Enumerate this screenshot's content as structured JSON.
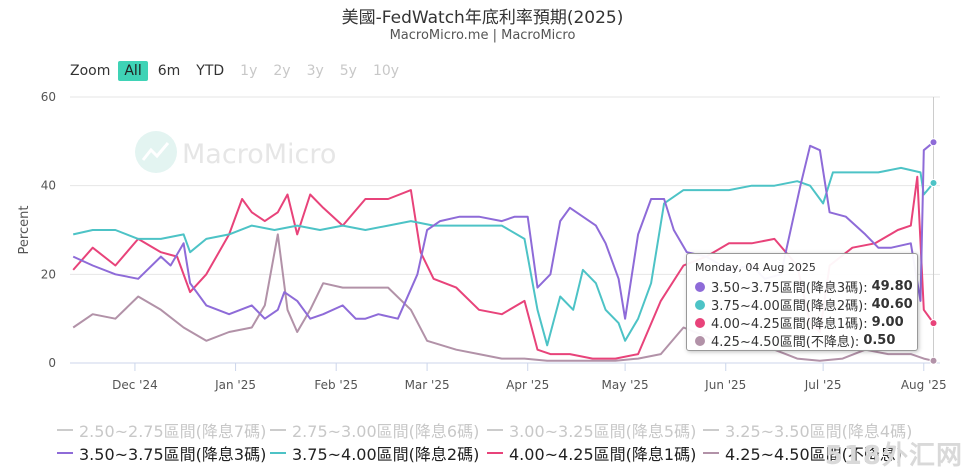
{
  "header": {
    "title": "美國-FedWatch年底利率預期(2025)",
    "subtitle": "MacroMicro.me | MacroMicro"
  },
  "range_selector": {
    "zoom_label": "Zoom",
    "buttons": [
      {
        "label": "All",
        "state": "active"
      },
      {
        "label": "6m",
        "state": "enabled"
      },
      {
        "label": "YTD",
        "state": "enabled"
      },
      {
        "label": "1y",
        "state": "disabled"
      },
      {
        "label": "2y",
        "state": "disabled"
      },
      {
        "label": "3y",
        "state": "disabled"
      },
      {
        "label": "5y",
        "state": "disabled"
      },
      {
        "label": "10y",
        "state": "disabled"
      }
    ]
  },
  "watermark": {
    "text": "MacroMicro"
  },
  "corner_mark": {
    "text": "518外汇网"
  },
  "tooltip": {
    "header": "Monday, 04 Aug 2025",
    "rows": [
      {
        "label": "3.50~3.75區間(降息3碼):",
        "value": "49.80",
        "color": "#8e6bd8"
      },
      {
        "label": "3.75~4.00區間(降息2碼):",
        "value": "40.60",
        "color": "#4dc3c6"
      },
      {
        "label": "4.00~4.25區間(降息1碼):",
        "value": "9.00",
        "color": "#e8437a"
      },
      {
        "label": "4.25~4.50區間(不降息):",
        "value": "0.50",
        "color": "#b292a8"
      }
    ]
  },
  "chart_data": {
    "type": "line",
    "title": "美國-FedWatch年底利率預期(2025)",
    "ylabel": "Percent",
    "ylim": [
      0,
      60
    ],
    "yticks": [
      0,
      20,
      40,
      60
    ],
    "xlim": [
      "2024-11-11",
      "2025-08-06"
    ],
    "xticks": [
      {
        "date": "2024-12-01",
        "label": "Dec '24"
      },
      {
        "date": "2025-01-01",
        "label": "Jan '25"
      },
      {
        "date": "2025-02-01",
        "label": "Feb '25"
      },
      {
        "date": "2025-03-01",
        "label": "Mar '25"
      },
      {
        "date": "2025-04-01",
        "label": "Apr '25"
      },
      {
        "date": "2025-05-01",
        "label": "May '25"
      },
      {
        "date": "2025-06-01",
        "label": "Jun '25"
      },
      {
        "date": "2025-07-01",
        "label": "Jul '25"
      },
      {
        "date": "2025-08-01",
        "label": "Aug '25"
      }
    ],
    "grid": true,
    "legend_position": "bottom",
    "hover_date": "2025-08-04",
    "hidden_series": [
      {
        "name": "2.50~2.75區間(降息7碼)"
      },
      {
        "name": "2.75~3.00區間(降息6碼)"
      },
      {
        "name": "3.00~3.25區間(降息5碼)"
      },
      {
        "name": "3.25~3.50區間(降息4碼)"
      }
    ],
    "series": [
      {
        "name": "3.50~3.75區間(降息3碼)",
        "color": "#8e6bd8",
        "points": [
          [
            "2024-11-12",
            24
          ],
          [
            "2024-11-18",
            22
          ],
          [
            "2024-11-25",
            20
          ],
          [
            "2024-12-02",
            19
          ],
          [
            "2024-12-09",
            24
          ],
          [
            "2024-12-12",
            22
          ],
          [
            "2024-12-16",
            27
          ],
          [
            "2024-12-18",
            18
          ],
          [
            "2024-12-23",
            13
          ],
          [
            "2024-12-30",
            11
          ],
          [
            "2025-01-06",
            13
          ],
          [
            "2025-01-10",
            10
          ],
          [
            "2025-01-14",
            12
          ],
          [
            "2025-01-16",
            16
          ],
          [
            "2025-01-20",
            14
          ],
          [
            "2025-01-24",
            10
          ],
          [
            "2025-01-28",
            11
          ],
          [
            "2025-02-03",
            13
          ],
          [
            "2025-02-07",
            10
          ],
          [
            "2025-02-10",
            10
          ],
          [
            "2025-02-14",
            11
          ],
          [
            "2025-02-20",
            10
          ],
          [
            "2025-02-26",
            20
          ],
          [
            "2025-03-01",
            30
          ],
          [
            "2025-03-05",
            32
          ],
          [
            "2025-03-11",
            33
          ],
          [
            "2025-03-17",
            33
          ],
          [
            "2025-03-24",
            32
          ],
          [
            "2025-03-28",
            33
          ],
          [
            "2025-04-01",
            33
          ],
          [
            "2025-04-04",
            17
          ],
          [
            "2025-04-08",
            20
          ],
          [
            "2025-04-11",
            32
          ],
          [
            "2025-04-14",
            35
          ],
          [
            "2025-04-18",
            33
          ],
          [
            "2025-04-22",
            31
          ],
          [
            "2025-04-25",
            27
          ],
          [
            "2025-04-29",
            19
          ],
          [
            "2025-05-01",
            10
          ],
          [
            "2025-05-05",
            29
          ],
          [
            "2025-05-09",
            37
          ],
          [
            "2025-05-13",
            37
          ],
          [
            "2025-05-16",
            30
          ],
          [
            "2025-05-20",
            25
          ],
          [
            "2025-05-26",
            24
          ],
          [
            "2025-06-02",
            21
          ],
          [
            "2025-06-09",
            22
          ],
          [
            "2025-06-13",
            19
          ],
          [
            "2025-06-18",
            20
          ],
          [
            "2025-06-24",
            40
          ],
          [
            "2025-06-27",
            49
          ],
          [
            "2025-06-30",
            48
          ],
          [
            "2025-07-03",
            34
          ],
          [
            "2025-07-08",
            33
          ],
          [
            "2025-07-14",
            29
          ],
          [
            "2025-07-18",
            26
          ],
          [
            "2025-07-22",
            26
          ],
          [
            "2025-07-28",
            27
          ],
          [
            "2025-07-31",
            14
          ],
          [
            "2025-08-01",
            48
          ],
          [
            "2025-08-04",
            49.8
          ]
        ]
      },
      {
        "name": "3.75~4.00區間(降息2碼)",
        "color": "#4dc3c6",
        "points": [
          [
            "2024-11-12",
            29
          ],
          [
            "2024-11-18",
            30
          ],
          [
            "2024-11-25",
            30
          ],
          [
            "2024-12-02",
            28
          ],
          [
            "2024-12-09",
            28
          ],
          [
            "2024-12-16",
            29
          ],
          [
            "2024-12-18",
            25
          ],
          [
            "2024-12-23",
            28
          ],
          [
            "2024-12-30",
            29
          ],
          [
            "2025-01-06",
            31
          ],
          [
            "2025-01-13",
            30
          ],
          [
            "2025-01-20",
            31
          ],
          [
            "2025-01-27",
            30
          ],
          [
            "2025-02-03",
            31
          ],
          [
            "2025-02-10",
            30
          ],
          [
            "2025-02-17",
            31
          ],
          [
            "2025-02-24",
            32
          ],
          [
            "2025-03-03",
            31
          ],
          [
            "2025-03-10",
            31
          ],
          [
            "2025-03-17",
            31
          ],
          [
            "2025-03-24",
            31
          ],
          [
            "2025-03-31",
            28
          ],
          [
            "2025-04-04",
            12
          ],
          [
            "2025-04-07",
            4
          ],
          [
            "2025-04-11",
            15
          ],
          [
            "2025-04-15",
            12
          ],
          [
            "2025-04-18",
            21
          ],
          [
            "2025-04-22",
            18
          ],
          [
            "2025-04-25",
            12
          ],
          [
            "2025-04-29",
            9
          ],
          [
            "2025-05-01",
            5
          ],
          [
            "2025-05-05",
            10
          ],
          [
            "2025-05-09",
            18
          ],
          [
            "2025-05-13",
            36
          ],
          [
            "2025-05-19",
            39
          ],
          [
            "2025-05-26",
            39
          ],
          [
            "2025-06-02",
            39
          ],
          [
            "2025-06-09",
            40
          ],
          [
            "2025-06-16",
            40
          ],
          [
            "2025-06-23",
            41
          ],
          [
            "2025-06-27",
            40
          ],
          [
            "2025-07-01",
            36
          ],
          [
            "2025-07-04",
            43
          ],
          [
            "2025-07-11",
            43
          ],
          [
            "2025-07-18",
            43
          ],
          [
            "2025-07-25",
            44
          ],
          [
            "2025-07-31",
            43
          ],
          [
            "2025-08-01",
            38
          ],
          [
            "2025-08-04",
            40.6
          ]
        ]
      },
      {
        "name": "4.00~4.25區間(降息1碼)",
        "color": "#e8437a",
        "points": [
          [
            "2024-11-12",
            21
          ],
          [
            "2024-11-18",
            26
          ],
          [
            "2024-11-25",
            22
          ],
          [
            "2024-12-02",
            28
          ],
          [
            "2024-12-09",
            25
          ],
          [
            "2024-12-14",
            24
          ],
          [
            "2024-12-18",
            16
          ],
          [
            "2024-12-23",
            20
          ],
          [
            "2024-12-30",
            29
          ],
          [
            "2025-01-03",
            37
          ],
          [
            "2025-01-06",
            34
          ],
          [
            "2025-01-10",
            32
          ],
          [
            "2025-01-14",
            34
          ],
          [
            "2025-01-17",
            38
          ],
          [
            "2025-01-20",
            29
          ],
          [
            "2025-01-24",
            38
          ],
          [
            "2025-01-28",
            35
          ],
          [
            "2025-02-03",
            31
          ],
          [
            "2025-02-10",
            37
          ],
          [
            "2025-02-17",
            37
          ],
          [
            "2025-02-24",
            39
          ],
          [
            "2025-02-27",
            25
          ],
          [
            "2025-03-03",
            19
          ],
          [
            "2025-03-10",
            17
          ],
          [
            "2025-03-17",
            12
          ],
          [
            "2025-03-24",
            11
          ],
          [
            "2025-03-31",
            14
          ],
          [
            "2025-04-04",
            3
          ],
          [
            "2025-04-08",
            2
          ],
          [
            "2025-04-14",
            2
          ],
          [
            "2025-04-21",
            1
          ],
          [
            "2025-04-28",
            1
          ],
          [
            "2025-05-05",
            2
          ],
          [
            "2025-05-12",
            14
          ],
          [
            "2025-05-19",
            22
          ],
          [
            "2025-05-26",
            24
          ],
          [
            "2025-06-02",
            27
          ],
          [
            "2025-06-09",
            27
          ],
          [
            "2025-06-16",
            28
          ],
          [
            "2025-06-23",
            22
          ],
          [
            "2025-06-27",
            9
          ],
          [
            "2025-06-30",
            7
          ],
          [
            "2025-07-03",
            22
          ],
          [
            "2025-07-10",
            26
          ],
          [
            "2025-07-17",
            27
          ],
          [
            "2025-07-24",
            30
          ],
          [
            "2025-07-28",
            31
          ],
          [
            "2025-07-30",
            42
          ],
          [
            "2025-08-01",
            12
          ],
          [
            "2025-08-04",
            9.0
          ]
        ]
      },
      {
        "name": "4.25~4.50區間(不降息)",
        "color": "#b292a8",
        "points": [
          [
            "2024-11-12",
            8
          ],
          [
            "2024-11-18",
            11
          ],
          [
            "2024-11-25",
            10
          ],
          [
            "2024-12-02",
            15
          ],
          [
            "2024-12-09",
            12
          ],
          [
            "2024-12-16",
            8
          ],
          [
            "2024-12-23",
            5
          ],
          [
            "2024-12-30",
            7
          ],
          [
            "2025-01-06",
            8
          ],
          [
            "2025-01-10",
            13
          ],
          [
            "2025-01-14",
            29
          ],
          [
            "2025-01-17",
            12
          ],
          [
            "2025-01-20",
            7
          ],
          [
            "2025-01-24",
            12
          ],
          [
            "2025-01-28",
            18
          ],
          [
            "2025-02-03",
            17
          ],
          [
            "2025-02-10",
            17
          ],
          [
            "2025-02-17",
            17
          ],
          [
            "2025-02-24",
            12
          ],
          [
            "2025-03-01",
            5
          ],
          [
            "2025-03-10",
            3
          ],
          [
            "2025-03-17",
            2
          ],
          [
            "2025-03-24",
            1
          ],
          [
            "2025-03-31",
            1
          ],
          [
            "2025-04-07",
            0.5
          ],
          [
            "2025-04-14",
            0.5
          ],
          [
            "2025-04-21",
            0.5
          ],
          [
            "2025-04-28",
            0.5
          ],
          [
            "2025-05-05",
            1
          ],
          [
            "2025-05-12",
            2
          ],
          [
            "2025-05-19",
            8
          ],
          [
            "2025-05-26",
            6
          ],
          [
            "2025-06-02",
            3
          ],
          [
            "2025-06-09",
            3
          ],
          [
            "2025-06-16",
            3
          ],
          [
            "2025-06-23",
            1
          ],
          [
            "2025-06-30",
            0.5
          ],
          [
            "2025-07-07",
            1
          ],
          [
            "2025-07-14",
            3
          ],
          [
            "2025-07-21",
            2
          ],
          [
            "2025-07-28",
            2
          ],
          [
            "2025-08-01",
            1
          ],
          [
            "2025-08-04",
            0.5
          ]
        ]
      }
    ]
  }
}
